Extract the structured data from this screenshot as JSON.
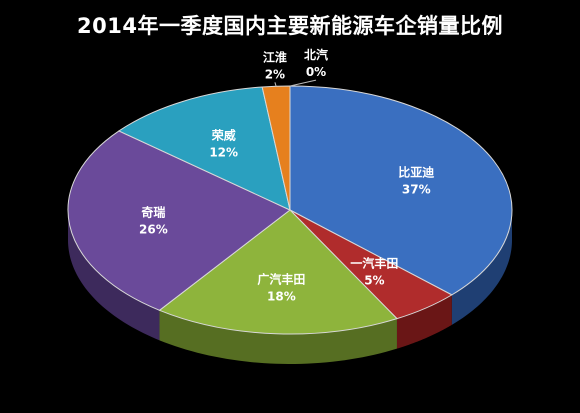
{
  "chart_data": {
    "type": "pie",
    "title": "2014年一季度国内主要新能源车企销量比例",
    "slices": [
      {
        "name": "比亚迪",
        "value": 37,
        "label": "37%",
        "color": "#3a6fc0",
        "side": "#1f3f73"
      },
      {
        "name": "一汽丰田",
        "value": 5,
        "label": "5%",
        "color": "#b02c2c",
        "side": "#6a1616"
      },
      {
        "name": "广汽丰田",
        "value": 18,
        "label": "18%",
        "color": "#8eb43c",
        "side": "#566e22"
      },
      {
        "name": "奇瑞",
        "value": 26,
        "label": "26%",
        "color": "#6a4a9a",
        "side": "#3d2a5c"
      },
      {
        "name": "荣威",
        "value": 12,
        "label": "12%",
        "color": "#2aa0bf",
        "side": "#175f72"
      },
      {
        "name": "江淮",
        "value": 2,
        "label": "2%",
        "color": "#e6801e",
        "side": "#8a4a10"
      },
      {
        "name": "北汽",
        "value": 0,
        "label": "0%",
        "color": "#888888",
        "side": "#555555"
      }
    ],
    "start_angle_deg": 90,
    "direction": "clockwise",
    "labels": "name and percent on slices",
    "legend": "none",
    "style": "3d"
  }
}
